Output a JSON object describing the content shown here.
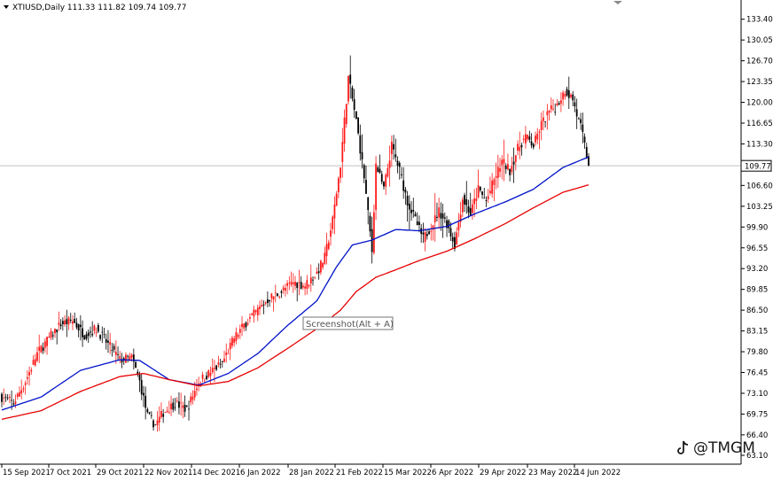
{
  "header": {
    "symbol_line": "XTIUSD,Daily  111.33 111.82 109.74 109.77",
    "collapse_marker": "triangle-down-icon"
  },
  "watermark": {
    "text": "@TMGM",
    "icon": "tiktok-logo-icon"
  },
  "tooltip": {
    "text": "Screenshot(Alt + A)"
  },
  "colors": {
    "bull": "#ff1b1b",
    "bear": "#000000",
    "ma_fast": "#0012c8",
    "ma_slow": "#e60000",
    "price_line": "#c0c0c0",
    "price_label_bg": "#ffffff"
  },
  "chart_data": {
    "type": "candlestick",
    "symbol": "XTIUSD",
    "timeframe": "Daily",
    "ylim": [
      63.1,
      134.5
    ],
    "y_ticks": [
      "133.40",
      "130.05",
      "126.70",
      "123.35",
      "120.00",
      "116.65",
      "113.30",
      "109.77",
      "106.60",
      "103.25",
      "99.90",
      "96.55",
      "93.20",
      "89.85",
      "86.50",
      "83.15",
      "79.80",
      "76.45",
      "73.10",
      "69.75",
      "66.40",
      "63.10"
    ],
    "x_ticks": [
      "15 Sep 2021",
      "7 Oct 2021",
      "29 Oct 2021",
      "22 Nov 2021",
      "14 Dec 2021",
      "6 Jan 2022",
      "28 Jan 2022",
      "21 Feb 2022",
      "15 Mar 2022",
      "6 Apr 2022",
      "29 Apr 2022",
      "23 May 2022",
      "14 Jun 2022"
    ],
    "current_price": "109.77",
    "last_ohlc": {
      "open": 111.33,
      "high": 111.82,
      "low": 109.74,
      "close": 109.77
    },
    "close_anchors": [
      [
        0,
        72.5
      ],
      [
        6,
        71.5
      ],
      [
        12,
        75.0
      ],
      [
        18,
        79.5
      ],
      [
        24,
        82.0
      ],
      [
        30,
        84.3
      ],
      [
        36,
        84.8
      ],
      [
        42,
        82.5
      ],
      [
        48,
        83.5
      ],
      [
        54,
        81.0
      ],
      [
        60,
        78.5
      ],
      [
        66,
        78.8
      ],
      [
        70,
        75.0
      ],
      [
        74,
        69.5
      ],
      [
        78,
        68.0
      ],
      [
        82,
        70.0
      ],
      [
        88,
        71.5
      ],
      [
        94,
        70.5
      ],
      [
        100,
        75.0
      ],
      [
        106,
        76.5
      ],
      [
        112,
        78.0
      ],
      [
        118,
        82.0
      ],
      [
        124,
        84.5
      ],
      [
        130,
        86.5
      ],
      [
        136,
        88.5
      ],
      [
        142,
        89.5
      ],
      [
        148,
        91.0
      ],
      [
        154,
        90.5
      ],
      [
        160,
        92.5
      ],
      [
        164,
        95.0
      ],
      [
        168,
        101.0
      ],
      [
        172,
        110.0
      ],
      [
        176,
        124.0
      ],
      [
        180,
        117.0
      ],
      [
        184,
        108.0
      ],
      [
        188,
        96.0
      ],
      [
        190,
        110.0
      ],
      [
        194,
        106.0
      ],
      [
        198,
        113.0
      ],
      [
        202,
        109.0
      ],
      [
        206,
        104.0
      ],
      [
        210,
        101.0
      ],
      [
        214,
        98.0
      ],
      [
        218,
        100.0
      ],
      [
        222,
        102.5
      ],
      [
        226,
        100.5
      ],
      [
        230,
        97.0
      ],
      [
        234,
        104.5
      ],
      [
        238,
        102.0
      ],
      [
        242,
        106.0
      ],
      [
        246,
        104.0
      ],
      [
        250,
        107.5
      ],
      [
        254,
        110.5
      ],
      [
        258,
        109.0
      ],
      [
        262,
        112.5
      ],
      [
        266,
        114.5
      ],
      [
        270,
        113.0
      ],
      [
        274,
        116.5
      ],
      [
        278,
        118.5
      ],
      [
        282,
        119.5
      ],
      [
        286,
        122.0
      ],
      [
        290,
        120.5
      ],
      [
        292,
        118.0
      ],
      [
        294,
        116.0
      ],
      [
        296,
        113.0
      ],
      [
        298,
        109.77
      ]
    ],
    "series": [
      {
        "name": "MA fast",
        "color": "#0012c8",
        "points": [
          [
            0,
            70.4
          ],
          [
            20,
            72.5
          ],
          [
            40,
            76.8
          ],
          [
            60,
            78.5
          ],
          [
            70,
            78.4
          ],
          [
            85,
            75.3
          ],
          [
            100,
            74.4
          ],
          [
            115,
            76.3
          ],
          [
            130,
            79.5
          ],
          [
            145,
            84.0
          ],
          [
            160,
            88.0
          ],
          [
            170,
            93.5
          ],
          [
            178,
            97.0
          ],
          [
            188,
            97.8
          ],
          [
            200,
            99.5
          ],
          [
            212,
            99.3
          ],
          [
            226,
            100.0
          ],
          [
            240,
            102.0
          ],
          [
            256,
            104.0
          ],
          [
            270,
            106.0
          ],
          [
            285,
            109.5
          ],
          [
            298,
            111.2
          ]
        ]
      },
      {
        "name": "MA slow",
        "color": "#e60000",
        "points": [
          [
            0,
            68.9
          ],
          [
            20,
            70.3
          ],
          [
            40,
            73.4
          ],
          [
            60,
            75.8
          ],
          [
            72,
            76.3
          ],
          [
            85,
            75.3
          ],
          [
            100,
            74.3
          ],
          [
            115,
            75.0
          ],
          [
            130,
            77.2
          ],
          [
            145,
            80.3
          ],
          [
            160,
            83.5
          ],
          [
            172,
            86.5
          ],
          [
            180,
            89.5
          ],
          [
            190,
            91.8
          ],
          [
            200,
            93.0
          ],
          [
            212,
            94.5
          ],
          [
            226,
            96.0
          ],
          [
            240,
            98.0
          ],
          [
            256,
            100.5
          ],
          [
            270,
            103.0
          ],
          [
            285,
            105.5
          ],
          [
            298,
            106.7
          ]
        ]
      }
    ],
    "num_bars": 299,
    "grid": false
  }
}
